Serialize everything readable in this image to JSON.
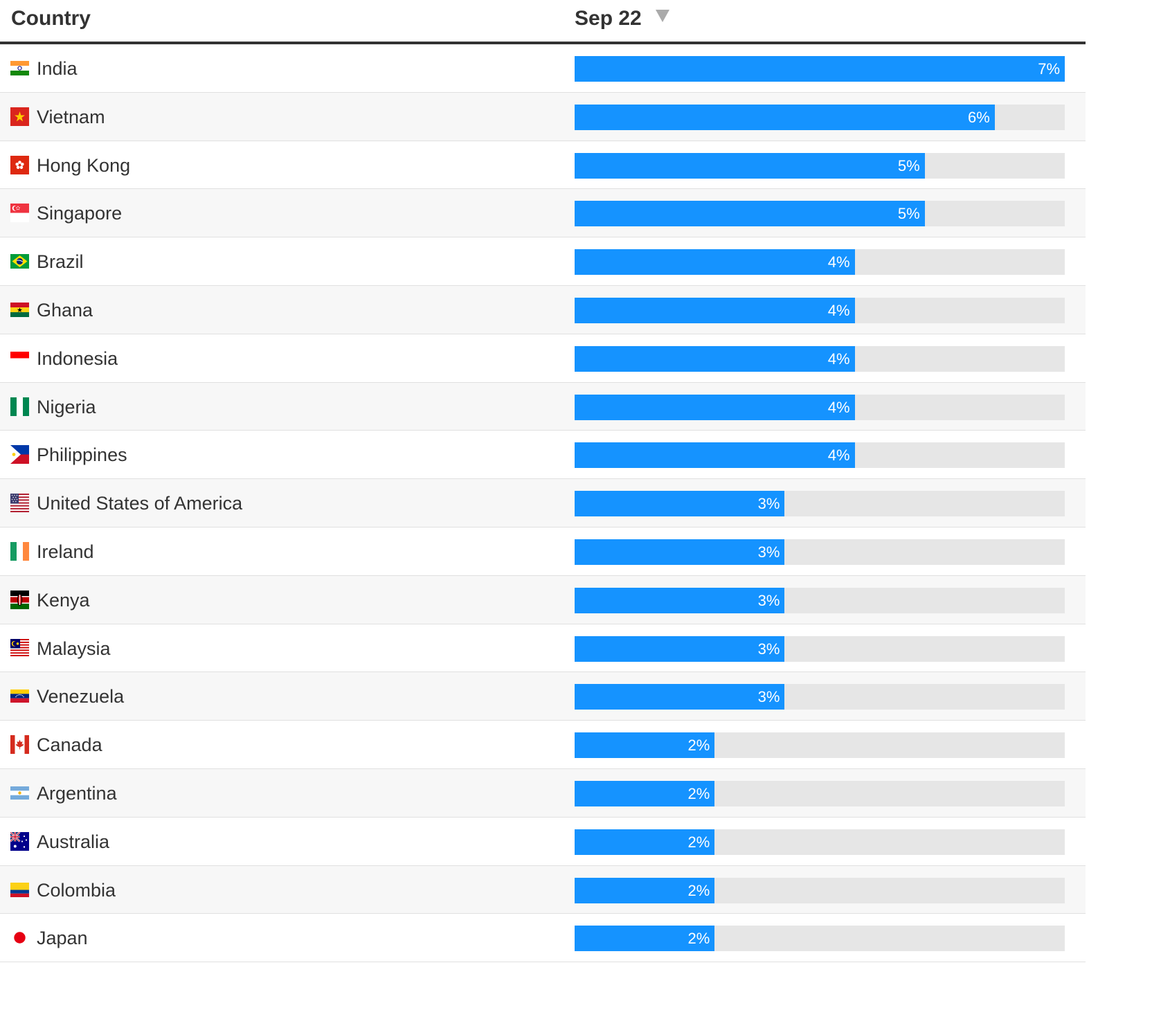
{
  "table": {
    "country_header": "Country",
    "date_header": "Sep 22",
    "sort_icon": "sort-descending-icon"
  },
  "chart_data": {
    "type": "bar",
    "orientation": "horizontal",
    "xlabel": "Sep 22",
    "ylabel": "Country",
    "xlim": [
      0,
      7
    ],
    "categories": [
      "India",
      "Vietnam",
      "Hong Kong",
      "Singapore",
      "Brazil",
      "Ghana",
      "Indonesia",
      "Nigeria",
      "Philippines",
      "United States of America",
      "Ireland",
      "Kenya",
      "Malaysia",
      "Venezuela",
      "Canada",
      "Argentina",
      "Australia",
      "Colombia",
      "Japan"
    ],
    "values": [
      7,
      6,
      5,
      5,
      4,
      4,
      4,
      4,
      4,
      3,
      3,
      3,
      3,
      3,
      2,
      2,
      2,
      2,
      2
    ],
    "labels": [
      "7%",
      "6%",
      "5%",
      "5%",
      "4%",
      "4%",
      "4%",
      "4%",
      "4%",
      "3%",
      "3%",
      "3%",
      "3%",
      "3%",
      "2%",
      "2%",
      "2%",
      "2%",
      "2%"
    ],
    "bar_color": "#1593ff",
    "track_color": "#e6e6e6"
  },
  "rows": [
    {
      "country": "India",
      "flag": "india-flag-icon"
    },
    {
      "country": "Vietnam",
      "flag": "vietnam-flag-icon"
    },
    {
      "country": "Hong Kong",
      "flag": "hong-kong-flag-icon"
    },
    {
      "country": "Singapore",
      "flag": "singapore-flag-icon"
    },
    {
      "country": "Brazil",
      "flag": "brazil-flag-icon"
    },
    {
      "country": "Ghana",
      "flag": "ghana-flag-icon"
    },
    {
      "country": "Indonesia",
      "flag": "indonesia-flag-icon"
    },
    {
      "country": "Nigeria",
      "flag": "nigeria-flag-icon"
    },
    {
      "country": "Philippines",
      "flag": "philippines-flag-icon"
    },
    {
      "country": "United States of America",
      "flag": "usa-flag-icon"
    },
    {
      "country": "Ireland",
      "flag": "ireland-flag-icon"
    },
    {
      "country": "Kenya",
      "flag": "kenya-flag-icon"
    },
    {
      "country": "Malaysia",
      "flag": "malaysia-flag-icon"
    },
    {
      "country": "Venezuela",
      "flag": "venezuela-flag-icon"
    },
    {
      "country": "Canada",
      "flag": "canada-flag-icon"
    },
    {
      "country": "Argentina",
      "flag": "argentina-flag-icon"
    },
    {
      "country": "Australia",
      "flag": "australia-flag-icon"
    },
    {
      "country": "Colombia",
      "flag": "colombia-flag-icon"
    },
    {
      "country": "Japan",
      "flag": "japan-flag-icon"
    }
  ]
}
